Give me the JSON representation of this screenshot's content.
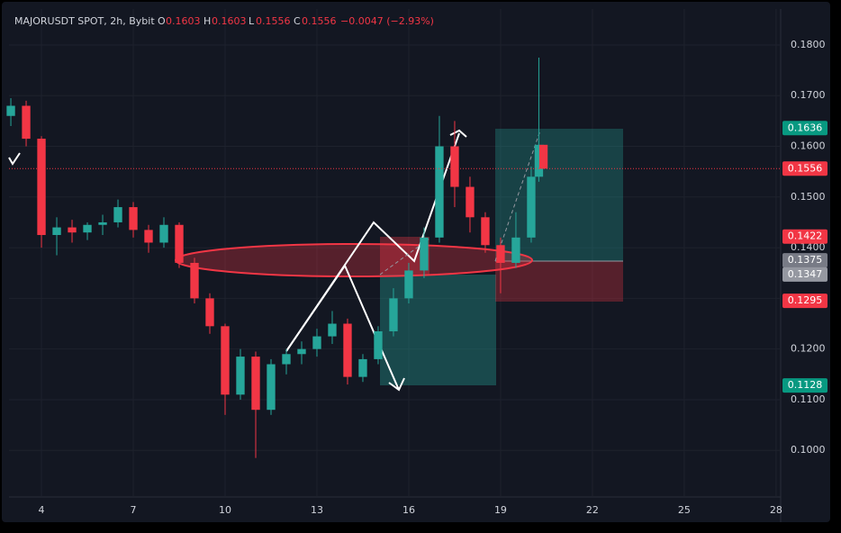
{
  "header": {
    "symbol": "MAJORUSDT SPOT, 2h, Bybit",
    "o_label": "O",
    "o": "0.1603",
    "h_label": "H",
    "h": "0.1603",
    "l_label": "L",
    "l": "0.1556",
    "c_label": "C",
    "c": "0.1556",
    "change": "−0.0047 (−2.93%)"
  },
  "chart_data": {
    "type": "candlestick",
    "x": [
      3.0,
      3.5,
      4.0,
      4.5,
      5.0,
      5.5,
      6.0,
      6.5,
      7.0,
      7.5,
      8.0,
      8.5,
      9.0,
      9.5,
      10.0,
      10.5,
      11.0,
      11.5,
      12.0,
      12.5,
      13.0,
      13.5,
      14.0,
      14.5,
      15.0,
      15.5,
      16.0,
      16.5,
      17.0,
      17.5,
      18.0,
      18.5,
      19.0,
      19.5,
      20.0,
      20.25,
      20.4
    ],
    "open": [
      0.166,
      0.168,
      0.1615,
      0.1425,
      0.144,
      0.143,
      0.1445,
      0.145,
      0.148,
      0.1435,
      0.141,
      0.1445,
      0.137,
      0.13,
      0.1245,
      0.111,
      0.1185,
      0.108,
      0.117,
      0.119,
      0.12,
      0.1225,
      0.125,
      0.1145,
      0.118,
      0.1235,
      0.13,
      0.1355,
      0.142,
      0.16,
      0.152,
      0.146,
      0.1405,
      0.137,
      0.142,
      0.154,
      0.1603
    ],
    "high": [
      0.1695,
      0.169,
      0.162,
      0.146,
      0.1455,
      0.145,
      0.1465,
      0.1495,
      0.149,
      0.1445,
      0.146,
      0.145,
      0.138,
      0.131,
      0.125,
      0.12,
      0.1195,
      0.118,
      0.12,
      0.1215,
      0.124,
      0.1275,
      0.126,
      0.119,
      0.1245,
      0.132,
      0.137,
      0.144,
      0.166,
      0.165,
      0.154,
      0.147,
      0.142,
      0.147,
      0.156,
      0.1775,
      0.1603
    ],
    "low": [
      0.164,
      0.16,
      0.14,
      0.1385,
      0.141,
      0.1415,
      0.1425,
      0.144,
      0.142,
      0.139,
      0.14,
      0.136,
      0.129,
      0.123,
      0.107,
      0.11,
      0.0985,
      0.107,
      0.115,
      0.117,
      0.1185,
      0.121,
      0.113,
      0.1135,
      0.117,
      0.1225,
      0.129,
      0.134,
      0.141,
      0.148,
      0.143,
      0.139,
      0.131,
      0.136,
      0.141,
      0.153,
      0.1556
    ],
    "close": [
      0.168,
      0.1615,
      0.1425,
      0.144,
      0.143,
      0.1445,
      0.145,
      0.148,
      0.1435,
      0.141,
      0.1445,
      0.137,
      0.13,
      0.1245,
      0.111,
      0.1185,
      0.108,
      0.117,
      0.119,
      0.12,
      0.1225,
      0.125,
      0.1145,
      0.118,
      0.1235,
      0.13,
      0.1355,
      0.142,
      0.16,
      0.152,
      0.146,
      0.1405,
      0.137,
      0.142,
      0.154,
      0.1603,
      0.1556
    ],
    "up_color": "#26a69a",
    "down_color": "#f23645",
    "xlim": [
      2.94,
      28.15
    ],
    "xticks": [
      4,
      7,
      10,
      13,
      16,
      19,
      22,
      25,
      28
    ],
    "ylim": [
      0.0908,
      0.1871
    ],
    "yticks": [
      {
        "value": 0.1,
        "label": "0.1000"
      },
      {
        "value": 0.11,
        "label": "0.1100"
      },
      {
        "value": 0.12,
        "label": "0.1200"
      },
      {
        "value": 0.13,
        "label": "0.1300"
      },
      {
        "value": 0.14,
        "label": "0.1400"
      },
      {
        "value": 0.15,
        "label": "0.1500"
      },
      {
        "value": 0.16,
        "label": "0.1600"
      },
      {
        "value": 0.17,
        "label": "0.1700"
      },
      {
        "value": 0.18,
        "label": "0.1800"
      }
    ],
    "price_tags": [
      {
        "value": 0.1636,
        "label": "0.1636",
        "color": "#089981"
      },
      {
        "value": 0.1556,
        "label": "0.1556",
        "color": "#f23645"
      },
      {
        "value": 0.1422,
        "label": "0.1422",
        "color": "#f23645"
      },
      {
        "value": 0.1375,
        "label": "0.1375",
        "color": "#787b86"
      },
      {
        "value": 0.1347,
        "label": "0.1347",
        "color": "#9598a1"
      },
      {
        "value": 0.1295,
        "label": "0.1295",
        "color": "#f23645"
      },
      {
        "value": 0.1128,
        "label": "0.1128",
        "color": "#089981"
      }
    ]
  }
}
